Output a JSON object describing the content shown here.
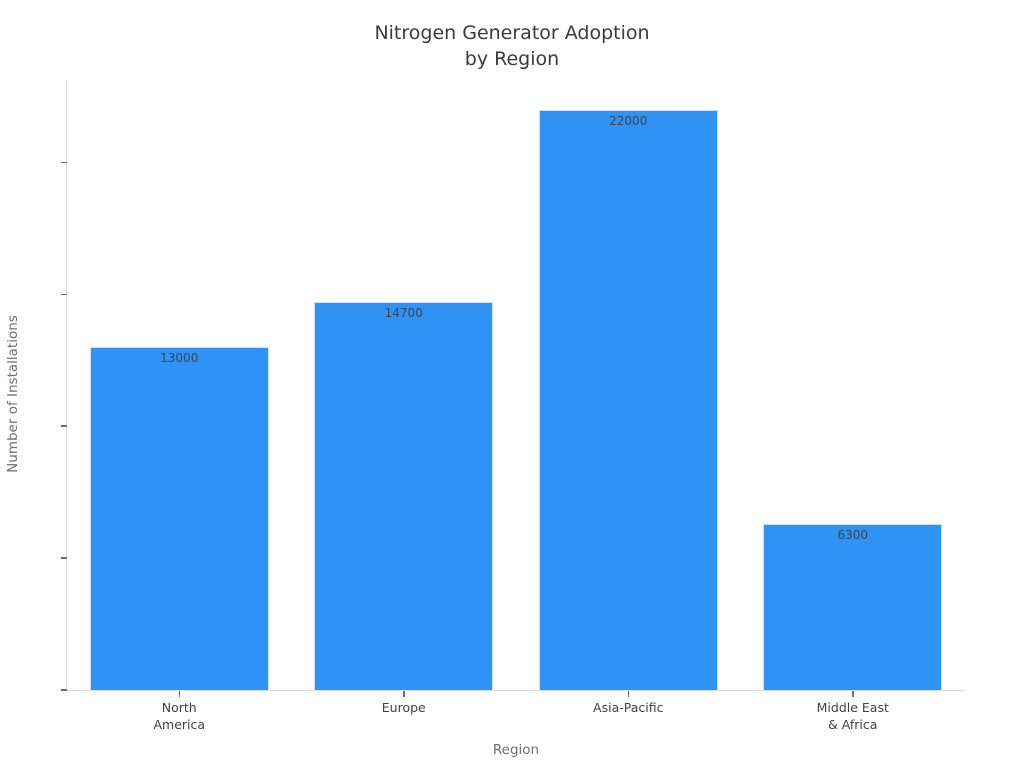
{
  "chart": {
    "title_display": "Nitrogen Generator Adoption\nby Region"
  },
  "chart_data": {
    "type": "bar",
    "title": "Nitrogen Generator Adoption by Region",
    "xlabel": "Region",
    "ylabel": "Number of Installations",
    "categories": [
      "North America",
      "Europe",
      "Asia-Pacific",
      "Middle East & Africa"
    ],
    "categories_display": [
      "North\nAmerica",
      "Europe",
      "Asia-Pacific",
      "Middle East\n& Africa"
    ],
    "values": [
      13000,
      14700,
      22000,
      6300
    ],
    "bar_labels": [
      "13000",
      "14700",
      "22000",
      "6300"
    ],
    "bar_label_position": "inside-top",
    "ylim": [
      0,
      23150
    ],
    "yticks": [
      {
        "value": 0,
        "label": "0"
      },
      {
        "value": 5000,
        "label": "5k"
      },
      {
        "value": 10000,
        "label": "10k"
      },
      {
        "value": 15000,
        "label": "15k"
      },
      {
        "value": 20000,
        "label": "20k"
      }
    ],
    "grid": false,
    "legend": null,
    "bar_color": "#2e93f5",
    "bar_border_color": "#c9e3fa",
    "title_color": "#3b3b3b",
    "axis_title_color": "#6f6f6f",
    "tick_label_color": "#414141",
    "spine_color": "#dcdcdc",
    "background_color": "#ffffff"
  }
}
